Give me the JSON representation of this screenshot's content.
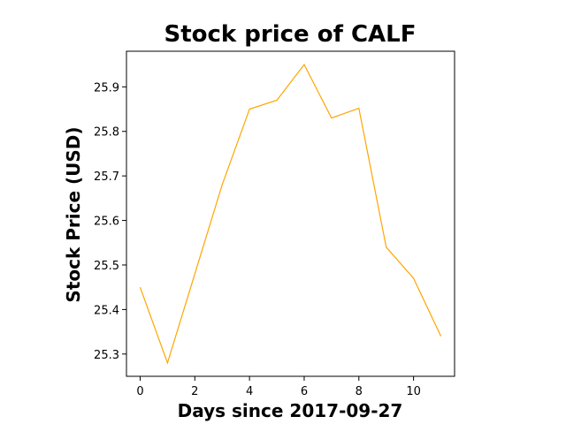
{
  "chart_data": {
    "type": "line",
    "title": "Stock price of CALF",
    "xlabel": "Days since 2017-09-27",
    "ylabel": "Stock Price (USD)",
    "x": [
      0,
      1,
      2,
      3,
      4,
      5,
      6,
      7,
      8,
      9,
      10,
      11
    ],
    "series": [
      {
        "values": [
          25.45,
          25.28,
          25.48,
          25.68,
          25.85,
          25.87,
          25.95,
          25.83,
          25.852,
          25.54,
          25.47,
          25.34
        ],
        "color": "#ffa500"
      }
    ],
    "xlim": [
      -0.5,
      11.5
    ],
    "ylim": [
      25.25,
      25.98
    ],
    "xticks": [
      0,
      2,
      4,
      6,
      8,
      10
    ],
    "yticks": [
      25.3,
      25.4,
      25.5,
      25.6,
      25.7,
      25.8,
      25.9
    ],
    "ytick_labels": [
      "25.3",
      "25.4",
      "25.5",
      "25.6",
      "25.7",
      "25.8",
      "25.9"
    ],
    "grid": false,
    "legend": "none"
  }
}
